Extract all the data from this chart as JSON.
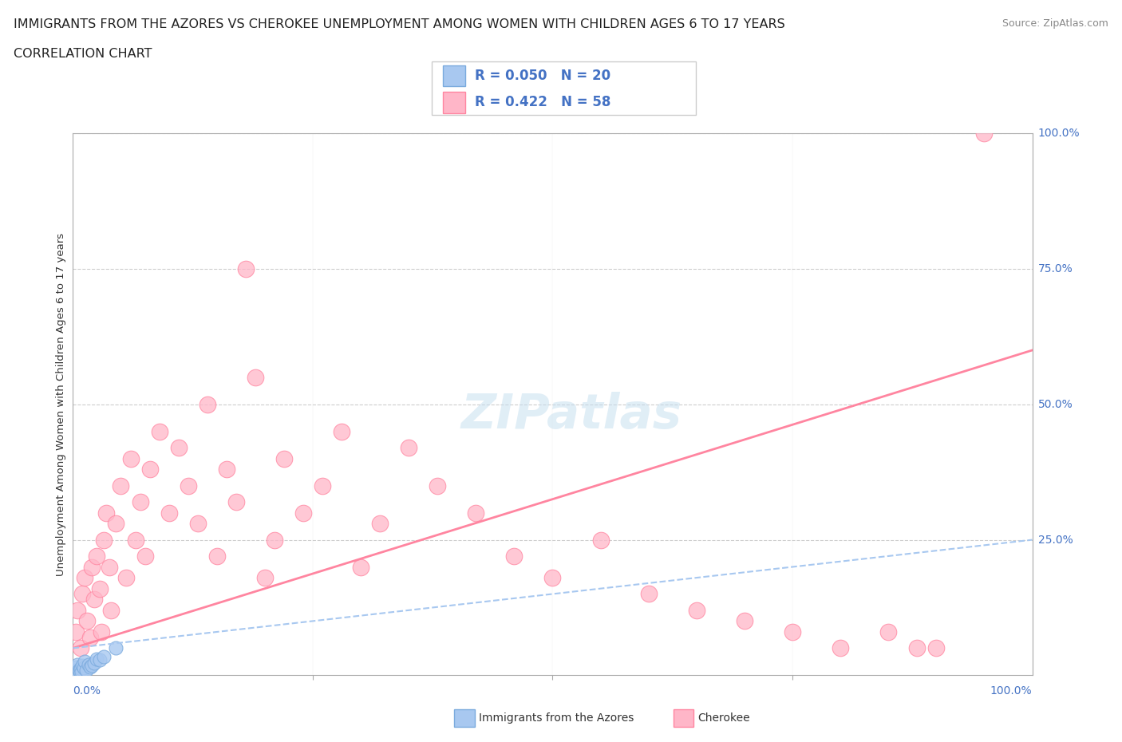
{
  "title": "IMMIGRANTS FROM THE AZORES VS CHEROKEE UNEMPLOYMENT AMONG WOMEN WITH CHILDREN AGES 6 TO 17 YEARS",
  "subtitle": "CORRELATION CHART",
  "source": "Source: ZipAtlas.com",
  "ylabel_label": "Unemployment Among Women with Children Ages 6 to 17 years",
  "legend_blue_r": "R = 0.050",
  "legend_blue_n": "N = 20",
  "legend_pink_r": "R = 0.422",
  "legend_pink_n": "N = 58",
  "watermark": "ZIPatlas",
  "color_blue": "#A8C8F0",
  "color_blue_edge": "#7AAADD",
  "color_pink": "#FFB6C8",
  "color_pink_edge": "#FF85A0",
  "color_blue_line": "#A8C8F0",
  "color_pink_line": "#FF85A0",
  "color_axis_label": "#4472C4",
  "blue_scatter_x": [
    0.2,
    0.3,
    0.4,
    0.5,
    0.6,
    0.7,
    0.8,
    0.9,
    1.0,
    1.1,
    1.2,
    1.4,
    1.6,
    1.8,
    2.0,
    2.2,
    2.5,
    2.8,
    3.2,
    4.5
  ],
  "blue_scatter_y": [
    1.0,
    0.5,
    1.5,
    2.0,
    1.0,
    0.8,
    1.2,
    0.6,
    1.8,
    1.4,
    2.5,
    1.0,
    2.0,
    1.5,
    1.8,
    2.2,
    3.0,
    2.8,
    3.5,
    5.0
  ],
  "pink_scatter_x": [
    0.3,
    0.5,
    0.8,
    1.0,
    1.2,
    1.5,
    1.8,
    2.0,
    2.2,
    2.5,
    2.8,
    3.0,
    3.2,
    3.5,
    3.8,
    4.0,
    4.5,
    5.0,
    5.5,
    6.0,
    6.5,
    7.0,
    7.5,
    8.0,
    9.0,
    10.0,
    11.0,
    12.0,
    13.0,
    14.0,
    15.0,
    16.0,
    17.0,
    18.0,
    19.0,
    20.0,
    21.0,
    22.0,
    24.0,
    26.0,
    28.0,
    30.0,
    32.0,
    35.0,
    38.0,
    42.0,
    46.0,
    50.0,
    55.0,
    60.0,
    65.0,
    70.0,
    75.0,
    80.0,
    85.0,
    88.0,
    90.0,
    95.0
  ],
  "pink_scatter_y": [
    8.0,
    12.0,
    5.0,
    15.0,
    18.0,
    10.0,
    7.0,
    20.0,
    14.0,
    22.0,
    16.0,
    8.0,
    25.0,
    30.0,
    20.0,
    12.0,
    28.0,
    35.0,
    18.0,
    40.0,
    25.0,
    32.0,
    22.0,
    38.0,
    45.0,
    30.0,
    42.0,
    35.0,
    28.0,
    50.0,
    22.0,
    38.0,
    32.0,
    75.0,
    55.0,
    18.0,
    25.0,
    40.0,
    30.0,
    35.0,
    45.0,
    20.0,
    28.0,
    42.0,
    35.0,
    30.0,
    22.0,
    18.0,
    25.0,
    15.0,
    12.0,
    10.0,
    8.0,
    5.0,
    8.0,
    5.0,
    5.0,
    100.0
  ],
  "pink_line_x0": 0,
  "pink_line_y0": 5.0,
  "pink_line_x1": 100,
  "pink_line_y1": 60.0,
  "blue_line_x0": 0,
  "blue_line_y0": 5.0,
  "blue_line_x1": 100,
  "blue_line_y1": 25.0,
  "xlim": [
    0,
    100
  ],
  "ylim": [
    0,
    100
  ],
  "background_color": "#FFFFFF",
  "grid_color": "#CCCCCC",
  "title_fontsize": 11.5,
  "subtitle_fontsize": 11.5,
  "source_fontsize": 9,
  "ylabel_fontsize": 9.5,
  "tick_label_fontsize": 10,
  "legend_fontsize": 12
}
